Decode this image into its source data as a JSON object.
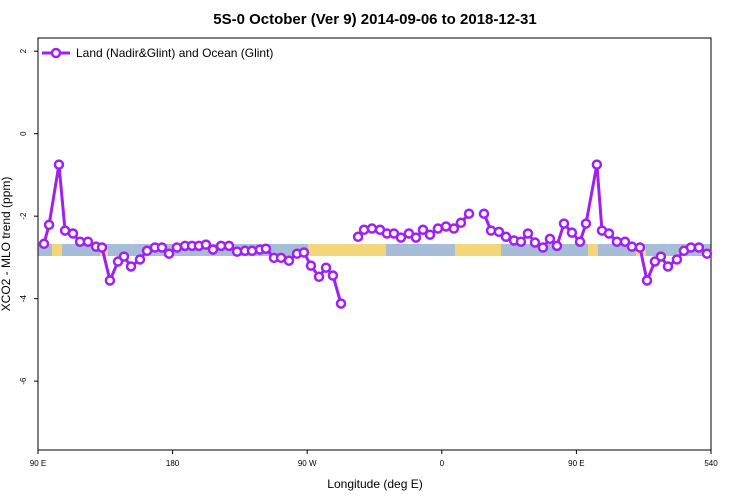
{
  "chart_data": {
    "type": "line",
    "title": "5S-0 October (Ver 9)   2014-09-06 to 2018-12-31",
    "xlabel": "Longitude (deg E)",
    "ylabel": "XCO2 - MLO trend (ppm)",
    "xlim": [
      90,
      540
    ],
    "xticks": [
      {
        "value": 90,
        "label": "90 E"
      },
      180,
      {
        "value": 270,
        "label": "90 W"
      },
      {
        "value": 360,
        "label": "0"
      },
      {
        "value": 450,
        "label": "90 E"
      },
      540
    ],
    "ylim": [
      -7.67,
      2.32
    ],
    "yticks": [
      2,
      0,
      -2,
      -4,
      -6
    ],
    "legend": "top-left",
    "x": [
      94.0,
      97.4,
      104.0,
      108.1,
      113.4,
      118.1,
      123.4,
      128.8,
      132.8,
      138.1,
      143.5,
      147.5,
      152.2,
      158.2,
      162.9,
      168.2,
      172.9,
      177.6,
      182.9,
      188.3,
      193.0,
      197.6,
      202.3,
      207.0,
      212.4,
      217.7,
      223.1,
      228.4,
      233.1,
      238.4,
      242.4,
      247.8,
      252.5,
      257.8,
      263.2,
      267.8,
      272.5,
      277.9,
      282.6,
      287.2,
      292.6,
      298.6,
      304.0,
      308.0,
      313.3,
      318.7,
      323.3,
      328.0,
      332.7,
      338.0,
      342.7,
      347.4,
      352.1,
      357.4,
      362.8,
      368.1,
      372.8,
      378.2,
      382.9,
      388.2,
      392.9,
      398.2,
      402.9,
      408.3,
      412.9,
      417.6,
      422.3,
      427.6,
      432.3,
      437.0,
      441.7,
      447.0,
      452.4,
      456.4,
      463.7,
      467.1,
      471.8,
      477.1,
      482.5,
      487.1,
      492.5,
      497.2,
      502.5,
      506.5,
      511.2,
      517.2,
      521.9,
      526.6,
      531.9,
      537.3
    ],
    "series": [
      {
        "name": "Land (Nadir&Glint) and Ocean (Glint)",
        "color": "#a020f0",
        "values": [
          -2.67,
          -2.21,
          -0.75,
          -2.35,
          -2.42,
          -2.62,
          -2.62,
          -2.74,
          -2.76,
          -3.56,
          -3.1,
          -2.98,
          -3.22,
          -3.05,
          -2.84,
          -2.76,
          -2.76,
          -2.91,
          -2.76,
          -2.72,
          -2.72,
          -2.72,
          -2.69,
          -2.81,
          -2.72,
          -2.72,
          -2.86,
          -2.84,
          -2.84,
          -2.81,
          -2.79,
          -3.01,
          -3.01,
          -3.08,
          -2.91,
          -2.88,
          -3.2,
          -3.47,
          -3.25,
          -3.44,
          -4.12,
          null,
          -2.5,
          -2.33,
          -2.3,
          -2.33,
          -2.42,
          -2.42,
          -2.52,
          -2.42,
          -2.52,
          -2.33,
          -2.45,
          -2.3,
          -2.25,
          -2.3,
          -2.16,
          -1.94,
          null,
          -1.94,
          -2.35,
          -2.38,
          -2.5,
          -2.59,
          -2.62,
          -2.42,
          -2.64,
          -2.76,
          -2.55,
          -2.72,
          -2.18,
          -2.4,
          -2.62,
          -2.18,
          -0.75,
          -2.35,
          -2.42,
          -2.62,
          -2.62,
          -2.74,
          -2.76,
          -3.56,
          -3.1,
          -2.98,
          -3.22,
          -3.05,
          -2.84,
          -2.76,
          -2.76,
          -2.91
        ]
      }
    ]
  }
}
